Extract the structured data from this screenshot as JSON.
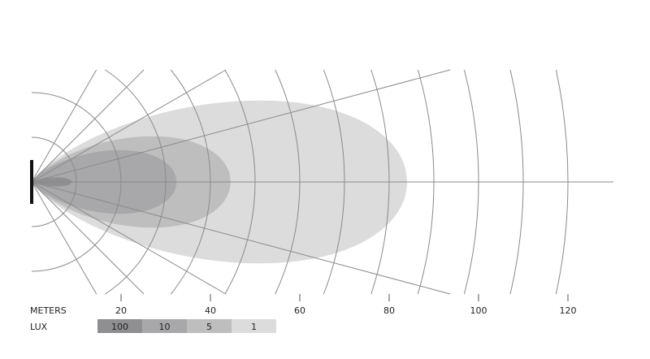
{
  "axis": {
    "label": "METERS",
    "ticks": [
      20,
      40,
      60,
      80,
      100,
      120
    ]
  },
  "legend": {
    "label": "LUX",
    "items": [
      {
        "value": "100",
        "color": "#8f8f91"
      },
      {
        "value": "10",
        "color": "#a8a8aa"
      },
      {
        "value": "5",
        "color": "#bebebf"
      },
      {
        "value": "1",
        "color": "#dcdcdd"
      }
    ]
  },
  "grid": {
    "arc_step_m": 10,
    "arc_max_m": 120,
    "ray_angles_deg": [
      -60,
      -45,
      -30,
      -15,
      0,
      15,
      30,
      45,
      60
    ],
    "line_color": "#8a8a8a"
  },
  "beam": [
    {
      "lux": "1",
      "reach_m": 84,
      "color": "#dcdcdd"
    },
    {
      "lux": "5",
      "reach_m": 44.5,
      "color": "#bebebf"
    },
    {
      "lux": "10",
      "reach_m": 32.4,
      "color": "#a8a8aa"
    },
    {
      "lux": "100",
      "reach_m": 9,
      "color": "#8f8f91"
    }
  ],
  "lamp_color": "#111111"
}
